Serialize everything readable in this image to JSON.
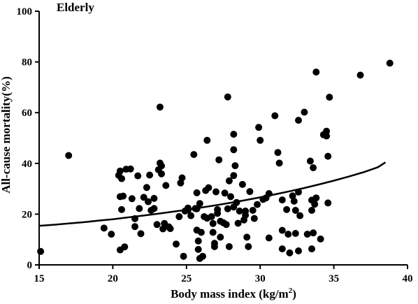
{
  "chart_data": {
    "type": "scatter",
    "title": "Elderly",
    "xlabel": "Body mass index (kg/m",
    "xlabel_superscript": "2",
    "xlabel_suffix": ")",
    "ylabel": "All-cause mortality(%)",
    "xlim": [
      15,
      40
    ],
    "ylim": [
      0,
      100
    ],
    "xticks": [
      15,
      20,
      25,
      30,
      35,
      40
    ],
    "yticks": [
      0,
      20,
      40,
      60,
      80,
      100
    ],
    "grid": false,
    "legend": "none",
    "colors": {
      "points": "#000000",
      "curve": "#000000",
      "axes": "#000000"
    },
    "series": [
      {
        "type": "scatter",
        "points": [
          [
            15.1,
            5.3
          ],
          [
            17.0,
            43.1
          ],
          [
            19.4,
            14.5
          ],
          [
            19.9,
            12.1
          ],
          [
            20.4,
            35.3
          ],
          [
            20.5,
            37.0
          ],
          [
            20.6,
            34.0
          ],
          [
            20.5,
            26.9
          ],
          [
            20.7,
            27.1
          ],
          [
            20.6,
            21.8
          ],
          [
            20.8,
            7.1
          ],
          [
            20.9,
            37.7
          ],
          [
            20.5,
            5.9
          ],
          [
            21.2,
            37.8
          ],
          [
            21.3,
            26.1
          ],
          [
            21.5,
            18.2
          ],
          [
            21.5,
            15.1
          ],
          [
            21.7,
            35.1
          ],
          [
            21.8,
            22.2
          ],
          [
            21.9,
            12.3
          ],
          [
            22.1,
            26.6
          ],
          [
            22.3,
            30.5
          ],
          [
            22.4,
            24.9
          ],
          [
            22.5,
            35.4
          ],
          [
            22.6,
            21.5
          ],
          [
            22.8,
            26.2
          ],
          [
            22.8,
            22.2
          ],
          [
            23.0,
            15.9
          ],
          [
            23.1,
            37.5
          ],
          [
            23.2,
            40.1
          ],
          [
            23.3,
            39.0
          ],
          [
            23.3,
            35.9
          ],
          [
            23.2,
            62.2
          ],
          [
            23.4,
            14.2
          ],
          [
            23.5,
            16.3
          ],
          [
            23.6,
            31.3
          ],
          [
            23.8,
            15.0
          ],
          [
            23.9,
            14.3
          ],
          [
            24.3,
            8.2
          ],
          [
            24.5,
            19.0
          ],
          [
            24.6,
            32.3
          ],
          [
            24.7,
            34.3
          ],
          [
            24.8,
            3.4
          ],
          [
            24.9,
            21.2
          ],
          [
            25.1,
            22.4
          ],
          [
            25.1,
            21.6
          ],
          [
            25.3,
            19.4
          ],
          [
            25.5,
            43.5
          ],
          [
            25.6,
            22.2
          ],
          [
            25.7,
            22.1
          ],
          [
            25.7,
            13.7
          ],
          [
            25.8,
            9.4
          ],
          [
            25.9,
            24.2
          ],
          [
            25.7,
            28.4
          ],
          [
            25.8,
            6.1
          ],
          [
            25.9,
            2.5
          ],
          [
            26.0,
            12.8
          ],
          [
            26.1,
            3.4
          ],
          [
            26.2,
            19.0
          ],
          [
            26.3,
            29.3
          ],
          [
            26.4,
            18.4
          ],
          [
            26.4,
            49.1
          ],
          [
            26.5,
            30.4
          ],
          [
            26.7,
            19.0
          ],
          [
            26.8,
            12.8
          ],
          [
            26.8,
            16.3
          ],
          [
            26.9,
            8.5
          ],
          [
            26.9,
            7.2
          ],
          [
            27.0,
            28.8
          ],
          [
            27.1,
            21.8
          ],
          [
            27.1,
            20.3
          ],
          [
            27.2,
            41.4
          ],
          [
            27.3,
            10.9
          ],
          [
            27.3,
            17.2
          ],
          [
            27.5,
            16.6
          ],
          [
            27.6,
            28.3
          ],
          [
            27.7,
            15.9
          ],
          [
            27.8,
            22.1
          ],
          [
            27.9,
            33.1
          ],
          [
            27.9,
            7.2
          ],
          [
            27.8,
            66.2
          ],
          [
            28.0,
            26.9
          ],
          [
            28.2,
            35.2
          ],
          [
            28.2,
            22.8
          ],
          [
            28.2,
            51.5
          ],
          [
            28.2,
            45.4
          ],
          [
            28.3,
            39.1
          ],
          [
            28.4,
            24.6
          ],
          [
            28.5,
            16.4
          ],
          [
            28.6,
            21.2
          ],
          [
            28.8,
            31.7
          ],
          [
            28.9,
            17.7
          ],
          [
            29.0,
            19.6
          ],
          [
            29.0,
            21.2
          ],
          [
            29.1,
            10.9
          ],
          [
            29.2,
            7.2
          ],
          [
            29.3,
            28.9
          ],
          [
            29.5,
            21.5
          ],
          [
            29.6,
            18.3
          ],
          [
            29.8,
            23.8
          ],
          [
            29.9,
            54.2
          ],
          [
            30.0,
            49.1
          ],
          [
            30.2,
            25.8
          ],
          [
            30.4,
            26.4
          ],
          [
            30.6,
            28.1
          ],
          [
            30.6,
            10.6
          ],
          [
            31.0,
            58.8
          ],
          [
            31.2,
            44.3
          ],
          [
            31.3,
            40.1
          ],
          [
            31.5,
            25.6
          ],
          [
            31.5,
            13.6
          ],
          [
            31.5,
            6.3
          ],
          [
            31.8,
            21.8
          ],
          [
            31.9,
            12.1
          ],
          [
            32.0,
            4.7
          ],
          [
            32.2,
            27.2
          ],
          [
            32.3,
            25.1
          ],
          [
            32.4,
            21.5
          ],
          [
            32.4,
            12.4
          ],
          [
            32.6,
            5.5
          ],
          [
            32.6,
            28.7
          ],
          [
            32.6,
            57.0
          ],
          [
            32.7,
            19.4
          ],
          [
            33.0,
            60.2
          ],
          [
            33.2,
            12.1
          ],
          [
            33.4,
            40.9
          ],
          [
            33.5,
            6.3
          ],
          [
            33.5,
            25.5
          ],
          [
            33.5,
            21.5
          ],
          [
            33.6,
            38.3
          ],
          [
            33.6,
            12.6
          ],
          [
            33.7,
            23.9
          ],
          [
            33.8,
            26.4
          ],
          [
            33.8,
            76.0
          ],
          [
            34.1,
            10.2
          ],
          [
            34.3,
            51.3
          ],
          [
            34.5,
            52.7
          ],
          [
            34.5,
            50.8
          ],
          [
            34.6,
            42.8
          ],
          [
            34.6,
            24.4
          ],
          [
            34.7,
            66.1
          ],
          [
            36.8,
            74.8
          ],
          [
            38.8,
            79.5
          ]
        ]
      },
      {
        "type": "line",
        "x": [
          15,
          16,
          17,
          18,
          19,
          20,
          21,
          22,
          23,
          24,
          25,
          26,
          27,
          28,
          29,
          30,
          31,
          32,
          33,
          34,
          35,
          36,
          37,
          38,
          38.5
        ],
        "y": [
          15.4,
          15.8,
          16.3,
          16.8,
          17.4,
          18.0,
          18.7,
          19.4,
          20.1,
          20.9,
          21.7,
          22.6,
          23.5,
          24.5,
          25.5,
          26.6,
          27.8,
          29.0,
          30.3,
          31.7,
          33.2,
          34.8,
          36.5,
          38.5,
          40.4
        ]
      }
    ]
  }
}
